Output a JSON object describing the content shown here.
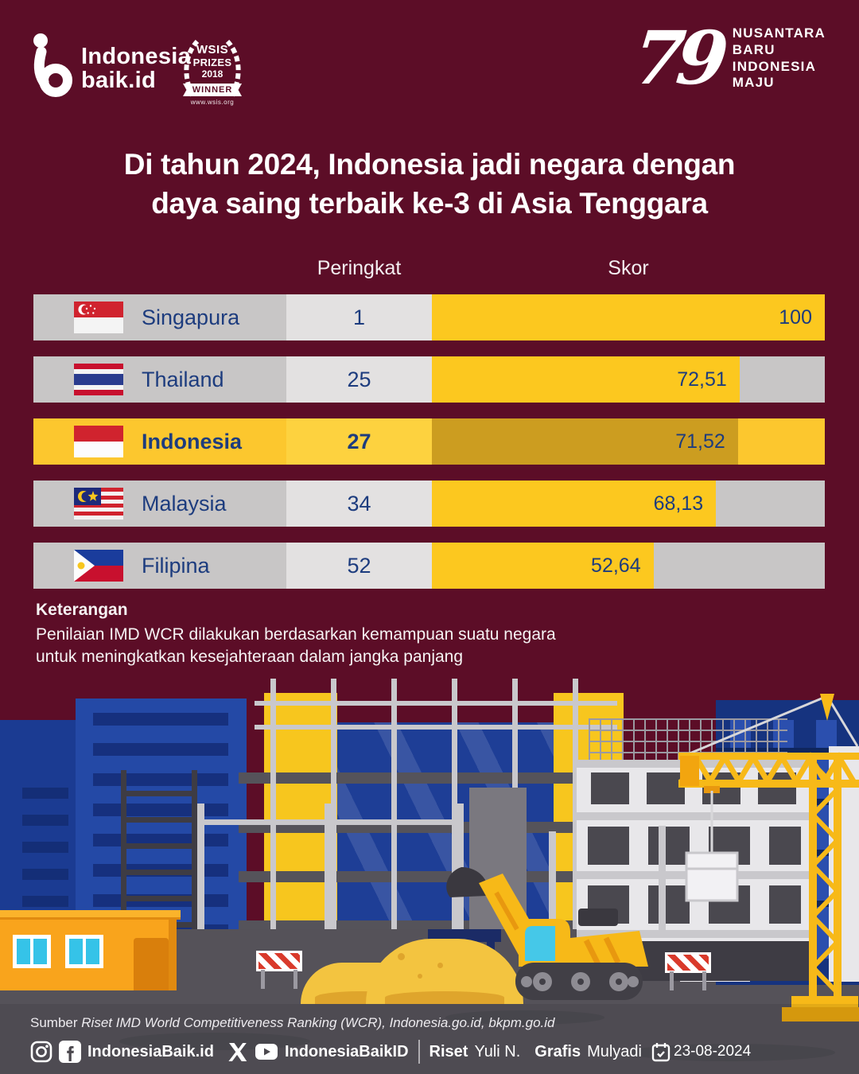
{
  "page": {
    "bg_color": "#5C0D27",
    "accent_yellow": "#FCC81F",
    "highlight_gold": "#CC9D20",
    "navy_text": "#1D3C7E"
  },
  "header": {
    "brand": {
      "line1": "Indonesia",
      "line2": "baik.id"
    },
    "wsis": {
      "title1": "WSIS",
      "title2": "PRIZES",
      "year": "2018",
      "ribbon": "WINNER",
      "url": "www.wsis.org"
    },
    "anniv": {
      "number": "79",
      "l1": "NUSANTARA",
      "l2": "BARU",
      "l3": "INDONESIA",
      "l4": "MAJU"
    }
  },
  "title": {
    "line1": "Di tahun 2024, Indonesia jadi negara dengan",
    "line2": "daya saing terbaik ke-3 di Asia Tenggara"
  },
  "table": {
    "col_rank": "Peringkat",
    "col_score": "Skor",
    "rows": [
      {
        "country": "Singapura",
        "rank": "1",
        "score": "100",
        "bar": 100
      },
      {
        "country": "Thailand",
        "rank": "25",
        "score": "72,51",
        "bar": 78.3
      },
      {
        "country": "Indonesia",
        "rank": "27",
        "score": "71,52",
        "bar": 77.9
      },
      {
        "country": "Malaysia",
        "rank": "34",
        "score": "68,13",
        "bar": 72.3
      },
      {
        "country": "Filipina",
        "rank": "52",
        "score": "52,64",
        "bar": 56.4
      }
    ]
  },
  "note": {
    "heading": "Keterangan",
    "line1": "Penilaian IMD WCR dilakukan berdasarkan kemampuan suatu negara",
    "line2": "untuk meningkatkan kesejahteraan dalam jangka panjang"
  },
  "footer": {
    "source_label": "Sumber",
    "source_text": "Riset IMD World Competitiveness Ranking (WCR), Indonesia.go.id, bkpm.go.id",
    "handle1": "IndonesiaBaik.id",
    "handle2": "IndonesiaBaikID",
    "riset_label": "Riset",
    "riset_name": "Yuli N.",
    "grafis_label": "Grafis",
    "grafis_name": "Mulyadi",
    "date": "23-08-2024"
  },
  "chart_data": {
    "type": "bar",
    "title": "Di tahun 2024, Indonesia jadi negara dengan daya saing terbaik ke-3 di Asia Tenggara",
    "categories": [
      "Singapura",
      "Thailand",
      "Indonesia",
      "Malaysia",
      "Filipina"
    ],
    "series": [
      {
        "name": "Peringkat",
        "values": [
          1,
          25,
          27,
          34,
          52
        ]
      },
      {
        "name": "Skor",
        "values": [
          100,
          72.51,
          71.52,
          68.13,
          52.64
        ]
      }
    ],
    "xlabel": "Skor",
    "ylabel": "",
    "xlim": [
      0,
      100
    ],
    "orientation": "horizontal",
    "highlighted_category": "Indonesia",
    "legend_position": "none",
    "grid": false
  }
}
